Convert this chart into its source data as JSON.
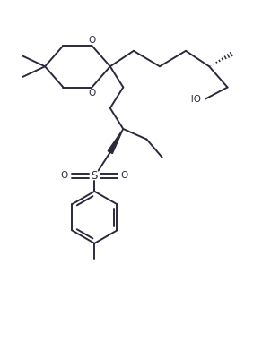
{
  "bg_color": "#ffffff",
  "bond_color": "#2a2a3a",
  "line_width": 1.4,
  "text_color": "#2a2a3a",
  "fig_width": 2.92,
  "fig_height": 3.81,
  "dpi": 100,
  "xlim": [
    0,
    10
  ],
  "ylim": [
    0,
    13
  ]
}
